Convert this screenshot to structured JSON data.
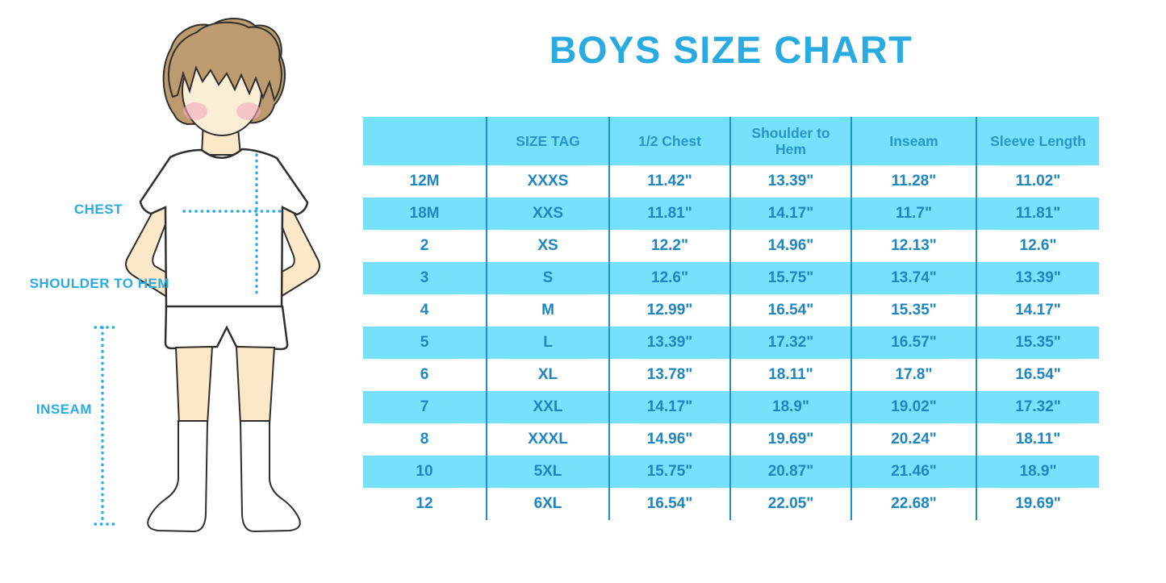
{
  "title": "BOYS SIZE CHART",
  "figure": {
    "labels": {
      "chest": "CHEST",
      "shoulder_to_hem": "SHOULDER TO HEM",
      "inseam": "INSEAM"
    }
  },
  "colors": {
    "accent_blue": "#29ABE2",
    "table_stripe": "#76E1FA",
    "table_divider": "#1F90CC",
    "header_text": "#2795C7",
    "cell_text": "#1D86C0",
    "skin": "#FAE8C8",
    "hair": "#BC9B6F",
    "blush": "#F3A9B9"
  },
  "chart_data": {
    "type": "table",
    "title": "BOYS SIZE CHART",
    "columns": [
      "",
      "SIZE TAG",
      "1/2 Chest",
      "Shoulder to Hem",
      "Inseam",
      "Sleeve Length"
    ],
    "rows": [
      [
        "12M",
        "XXXS",
        "11.42\"",
        "13.39\"",
        "11.28\"",
        "11.02\""
      ],
      [
        "18M",
        "XXS",
        "11.81\"",
        "14.17\"",
        "11.7\"",
        "11.81\""
      ],
      [
        "2",
        "XS",
        "12.2\"",
        "14.96\"",
        "12.13\"",
        "12.6\""
      ],
      [
        "3",
        "S",
        "12.6\"",
        "15.75\"",
        "13.74\"",
        "13.39\""
      ],
      [
        "4",
        "M",
        "12.99\"",
        "16.54\"",
        "15.35\"",
        "14.17\""
      ],
      [
        "5",
        "L",
        "13.39\"",
        "17.32\"",
        "16.57\"",
        "15.35\""
      ],
      [
        "6",
        "XL",
        "13.78\"",
        "18.11\"",
        "17.8\"",
        "16.54\""
      ],
      [
        "7",
        "XXL",
        "14.17\"",
        "18.9\"",
        "19.02\"",
        "17.32\""
      ],
      [
        "8",
        "XXXL",
        "14.96\"",
        "19.69\"",
        "20.24\"",
        "18.11\""
      ],
      [
        "10",
        "5XL",
        "15.75\"",
        "20.87\"",
        "21.46\"",
        "18.9\""
      ],
      [
        "12",
        "6XL",
        "16.54\"",
        "22.05\"",
        "22.68\"",
        "19.69\""
      ]
    ],
    "row_striping": "header and even body rows light cyan, odd body rows white",
    "units": "inches"
  }
}
